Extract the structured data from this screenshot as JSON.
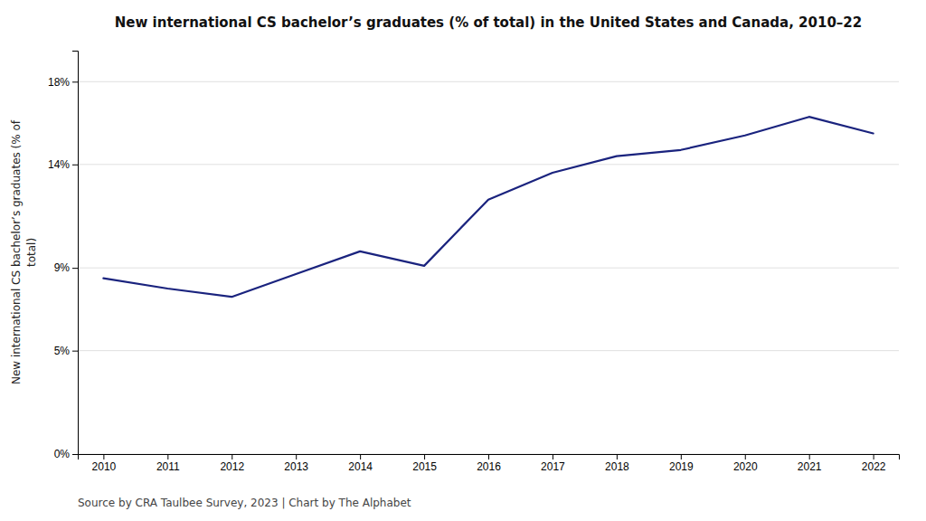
{
  "chart_data": {
    "type": "line",
    "title": "New international CS bachelor’s graduates (% of total) in the United States and Canada, 2010–22",
    "ylabel": "New international CS bachelor’s graduates (% of\ntotal)",
    "caption": "Source by CRA Taulbee Survey, 2023 | Chart by The Alphabet",
    "x": [
      2010,
      2011,
      2012,
      2013,
      2014,
      2015,
      2016,
      2017,
      2018,
      2019,
      2020,
      2021,
      2022
    ],
    "values": [
      0.085,
      0.08,
      0.076,
      0.087,
      0.098,
      0.091,
      0.123,
      0.136,
      0.144,
      0.147,
      0.154,
      0.163,
      0.155
    ],
    "color": "#1a237e",
    "xlim": [
      2009.6,
      2022.4
    ],
    "ylim": [
      0,
      0.195
    ],
    "xticks": [
      2010,
      2011,
      2012,
      2013,
      2014,
      2015,
      2016,
      2017,
      2018,
      2019,
      2020,
      2021,
      2022
    ],
    "yticks": [
      {
        "value": 0,
        "label": "0%"
      },
      {
        "value": 0.05,
        "label": "5%"
      },
      {
        "value": 0.09,
        "label": "9%"
      },
      {
        "value": 0.14,
        "label": "14%"
      },
      {
        "value": 0.18,
        "label": "18%"
      }
    ],
    "grid": true
  }
}
